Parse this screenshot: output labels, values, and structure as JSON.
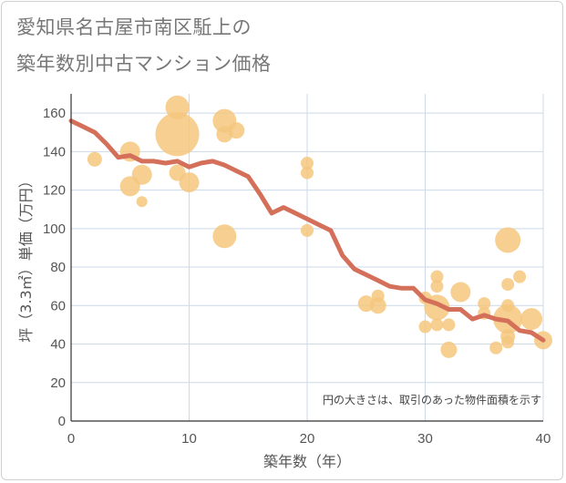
{
  "title_line1": "愛知県名古屋市南区駈上の",
  "title_line2": "築年数別中古マンション価格",
  "note": "円の大きさは、取引のあった物件面積を示す",
  "colors": {
    "bubble": "#f5c77e",
    "line": "#d4705a",
    "grid": "#ccd9e6",
    "axis": "#333333"
  },
  "chart_data": {
    "type": "scatter",
    "xlabel": "築年数（年）",
    "ylabel": "坪（3.3㎡）単価（万円）",
    "xlim": [
      0,
      40
    ],
    "ylim": [
      0,
      170
    ],
    "x_ticks": [
      "0",
      "10",
      "20",
      "30",
      "40"
    ],
    "y_ticks": [
      "0",
      "20",
      "40",
      "60",
      "80",
      "100",
      "120",
      "140",
      "160"
    ],
    "grid": true,
    "bubbles": [
      {
        "x": 2,
        "y": 136,
        "r": 8
      },
      {
        "x": 5,
        "y": 140,
        "r": 11
      },
      {
        "x": 5,
        "y": 122,
        "r": 11
      },
      {
        "x": 6,
        "y": 128,
        "r": 11
      },
      {
        "x": 6,
        "y": 114,
        "r": 6
      },
      {
        "x": 9,
        "y": 163,
        "r": 13
      },
      {
        "x": 9,
        "y": 149,
        "r": 24
      },
      {
        "x": 9,
        "y": 129,
        "r": 9
      },
      {
        "x": 10,
        "y": 124,
        "r": 11
      },
      {
        "x": 13,
        "y": 156,
        "r": 13
      },
      {
        "x": 13,
        "y": 149,
        "r": 9
      },
      {
        "x": 14,
        "y": 151,
        "r": 9
      },
      {
        "x": 13,
        "y": 96,
        "r": 13
      },
      {
        "x": 20,
        "y": 134,
        "r": 7
      },
      {
        "x": 20,
        "y": 129,
        "r": 7
      },
      {
        "x": 20,
        "y": 99,
        "r": 7
      },
      {
        "x": 25,
        "y": 61,
        "r": 9
      },
      {
        "x": 26,
        "y": 65,
        "r": 7
      },
      {
        "x": 26,
        "y": 60,
        "r": 9
      },
      {
        "x": 30,
        "y": 64,
        "r": 7
      },
      {
        "x": 30,
        "y": 49,
        "r": 7
      },
      {
        "x": 31,
        "y": 75,
        "r": 7
      },
      {
        "x": 31,
        "y": 70,
        "r": 7
      },
      {
        "x": 31,
        "y": 59,
        "r": 14
      },
      {
        "x": 31,
        "y": 50,
        "r": 7
      },
      {
        "x": 32,
        "y": 50,
        "r": 7
      },
      {
        "x": 32,
        "y": 37,
        "r": 9
      },
      {
        "x": 33,
        "y": 67,
        "r": 11
      },
      {
        "x": 35,
        "y": 61,
        "r": 7
      },
      {
        "x": 35,
        "y": 56,
        "r": 7
      },
      {
        "x": 36,
        "y": 38,
        "r": 7
      },
      {
        "x": 37,
        "y": 94,
        "r": 14
      },
      {
        "x": 37,
        "y": 71,
        "r": 7
      },
      {
        "x": 37,
        "y": 60,
        "r": 7
      },
      {
        "x": 37,
        "y": 53,
        "r": 16
      },
      {
        "x": 37,
        "y": 44,
        "r": 8
      },
      {
        "x": 37,
        "y": 41,
        "r": 7
      },
      {
        "x": 38,
        "y": 75,
        "r": 7
      },
      {
        "x": 39,
        "y": 53,
        "r": 12
      },
      {
        "x": 40,
        "y": 42,
        "r": 10
      }
    ],
    "trend": {
      "x": [
        0,
        1,
        2,
        3,
        4,
        5,
        6,
        7,
        8,
        9,
        10,
        11,
        12,
        13,
        14,
        15,
        16,
        17,
        18,
        19,
        20,
        21,
        22,
        23,
        24,
        25,
        26,
        27,
        28,
        29,
        30,
        31,
        32,
        33,
        34,
        35,
        36,
        37,
        38,
        39,
        40
      ],
      "y": [
        156,
        153,
        150,
        144,
        137,
        138,
        135,
        135,
        134,
        135,
        132,
        134,
        135,
        133,
        130,
        127,
        118,
        108,
        111,
        108,
        105,
        102,
        99,
        86,
        79,
        76,
        73,
        70,
        69,
        69,
        63,
        61,
        58,
        58,
        53,
        55,
        53,
        52,
        47,
        46,
        42
      ]
    }
  }
}
